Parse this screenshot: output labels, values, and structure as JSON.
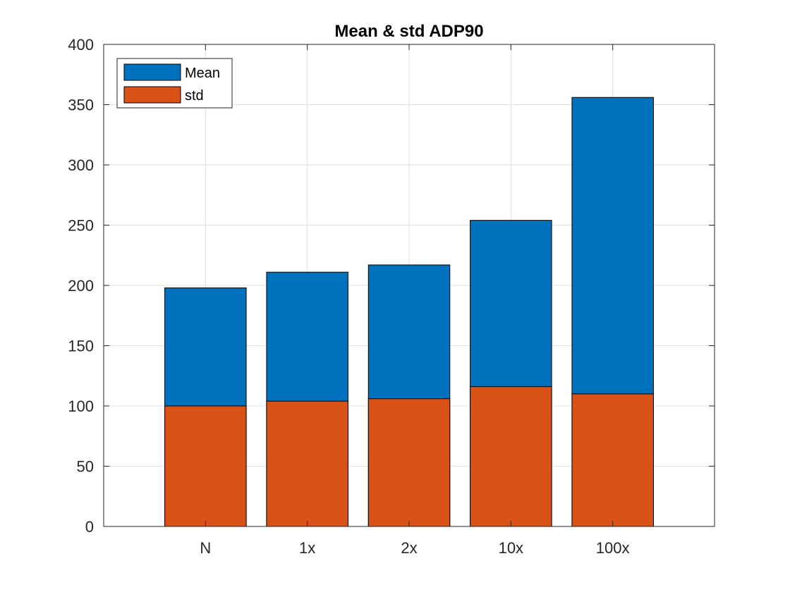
{
  "chart_data": {
    "type": "bar",
    "stacked": false,
    "overlaid": true,
    "title": "Mean & std ADP90",
    "xlabel": "",
    "ylabel": "",
    "categories": [
      "N",
      "1x",
      "2x",
      "10x",
      "100x"
    ],
    "series": [
      {
        "name": "Mean",
        "color": "#0072BD",
        "values": [
          198,
          211,
          217,
          254,
          356
        ]
      },
      {
        "name": "std",
        "color": "#D95319",
        "values": [
          100,
          104,
          106,
          116,
          110
        ]
      }
    ],
    "ylim": [
      0,
      400
    ],
    "yticks": [
      0,
      50,
      100,
      150,
      200,
      250,
      300,
      350,
      400
    ],
    "grid": true,
    "legend_position": "top-left"
  }
}
